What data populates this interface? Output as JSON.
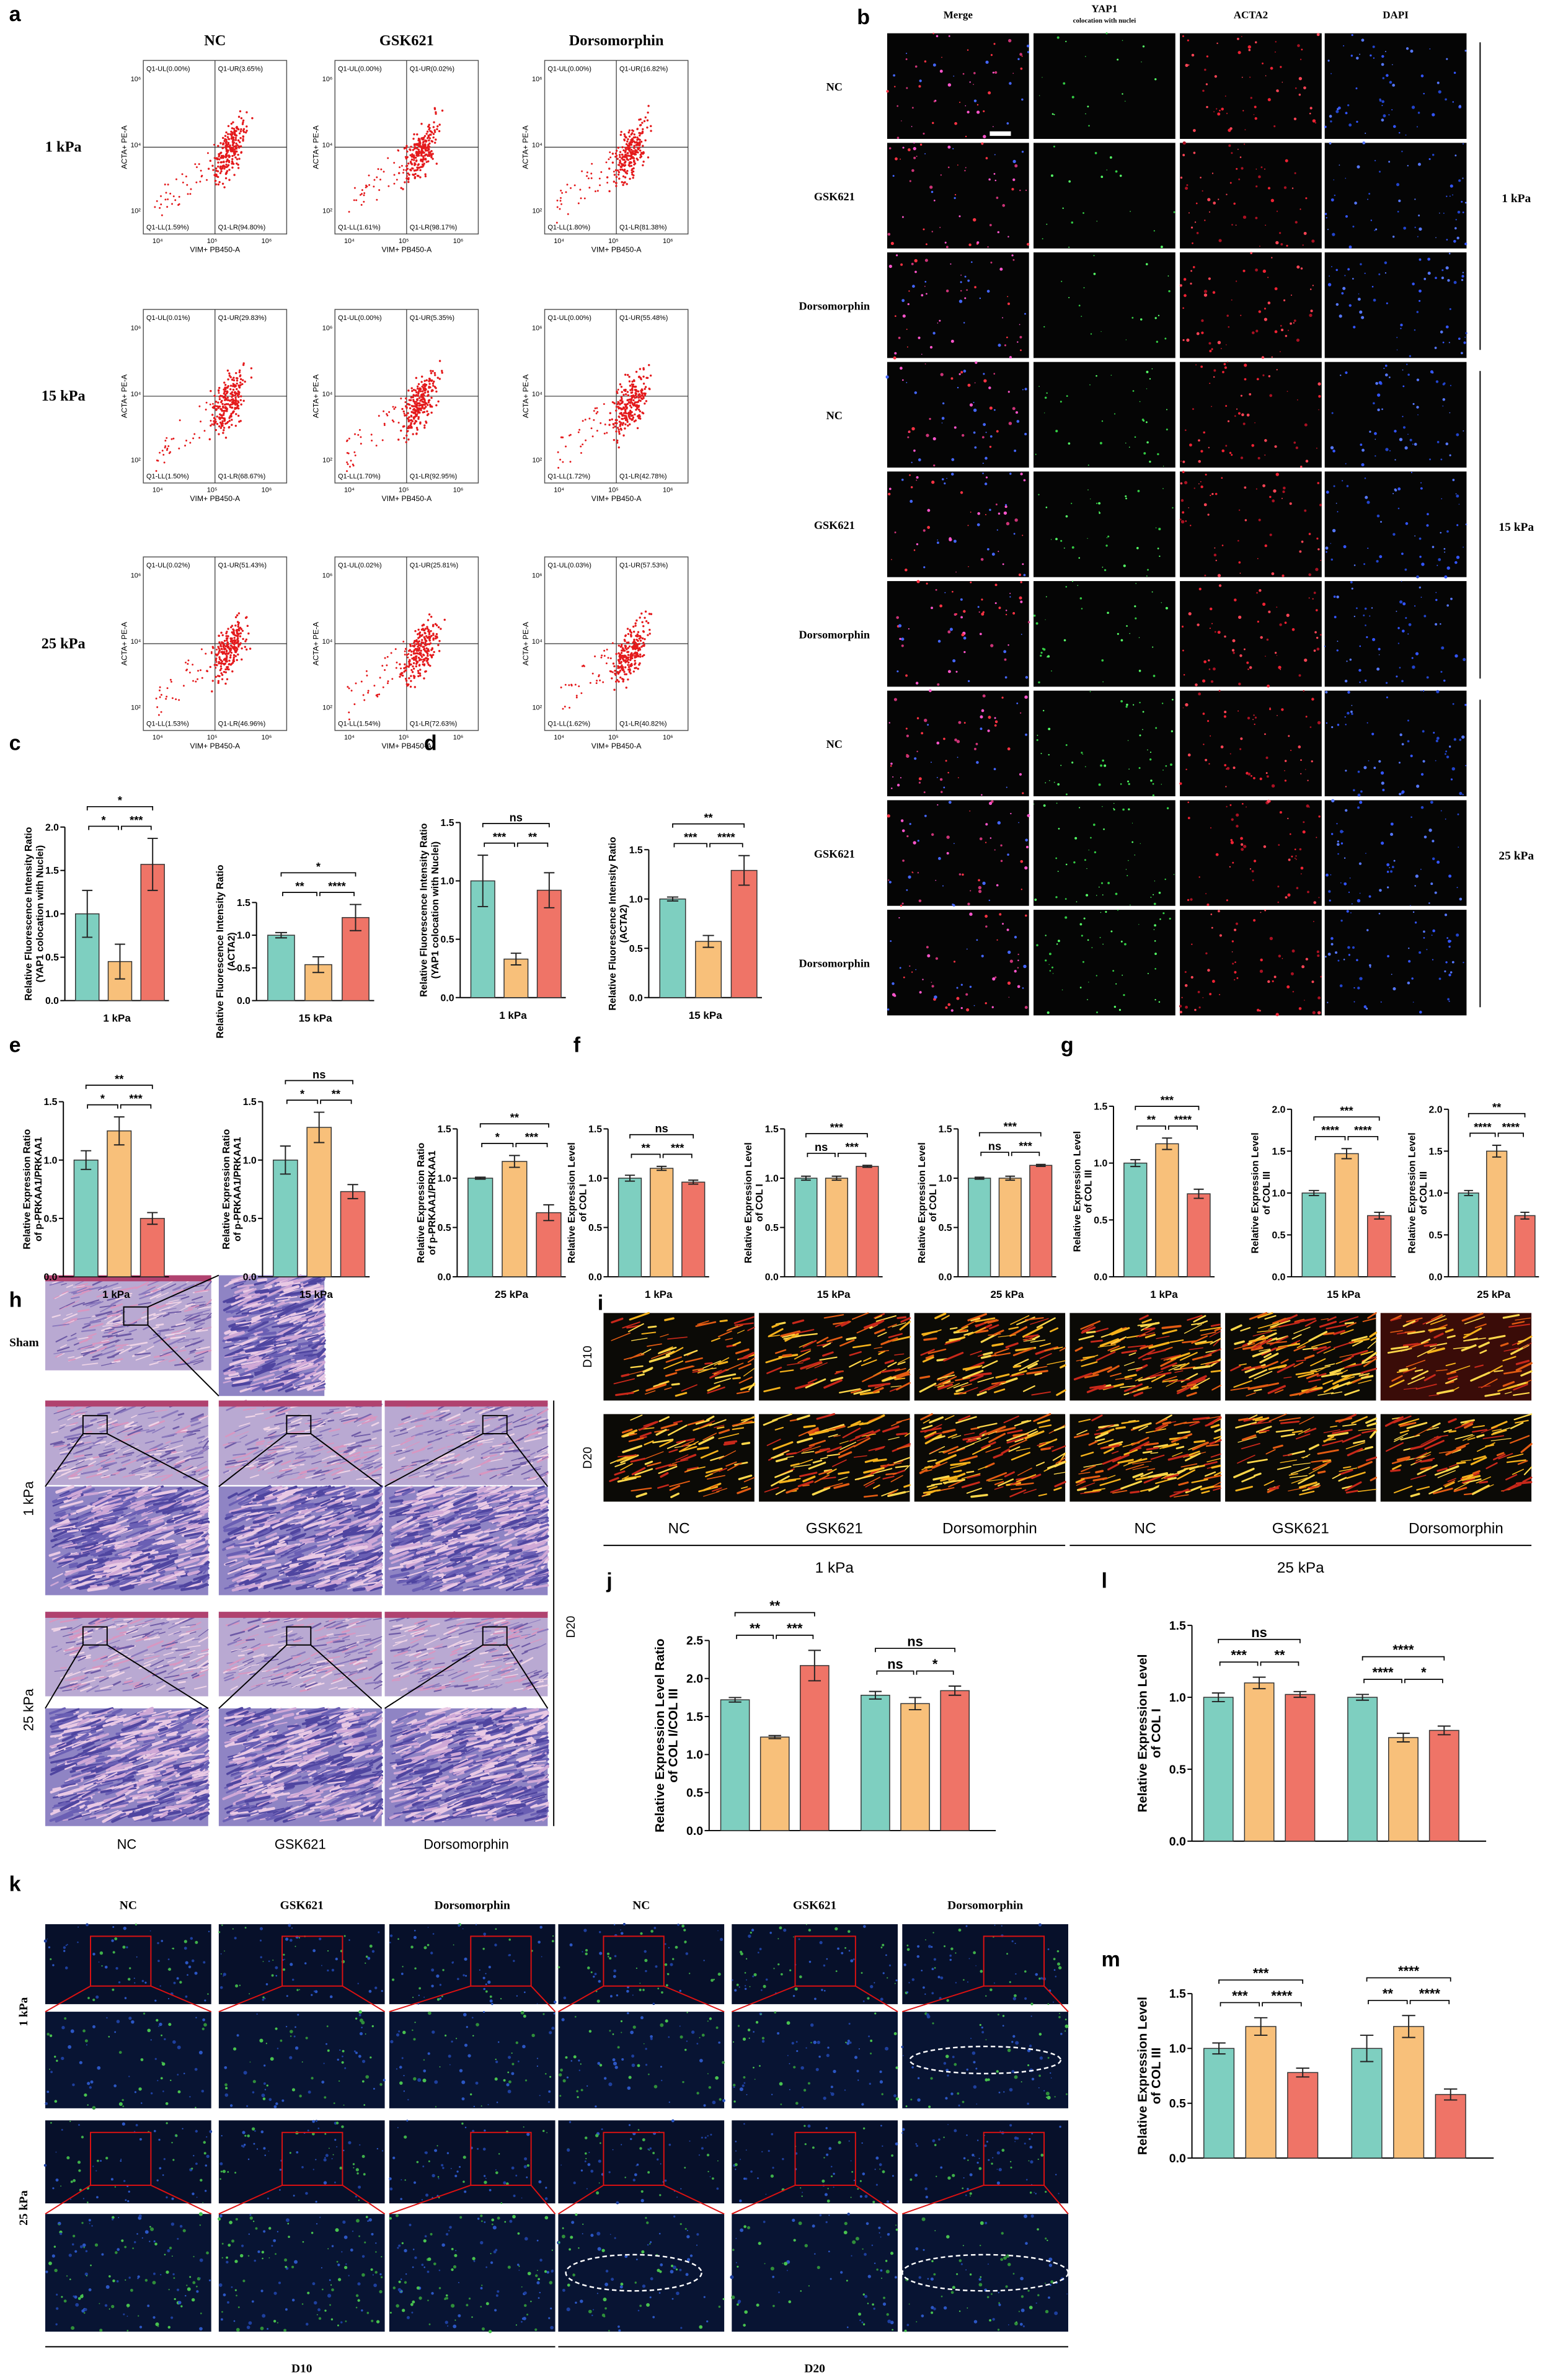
{
  "panel_letters": [
    "a",
    "b",
    "c",
    "d",
    "e",
    "f",
    "g",
    "h",
    "i",
    "j",
    "k",
    "l",
    "m"
  ],
  "flow_cytometry": {
    "columns": [
      "NC",
      "GSK621",
      "Dorsomorphin"
    ],
    "rows": [
      "1 kPa",
      "15 kPa",
      "25 kPa"
    ],
    "x_axis_label": "VIM+ PB450-A",
    "y_axis_label": "ACTA+ PE-A",
    "x_tick_labels": [
      "10⁴",
      "10⁵",
      "10⁶"
    ],
    "y_tick_labels": [
      "10⁶",
      "10⁴",
      "10²"
    ],
    "quadrants": [
      [
        [
          "Q1-UL(0.00%)",
          "Q1-UR(3.65%)",
          "Q1-LL(1.59%)",
          "Q1-LR(94.80%)"
        ],
        [
          "Q1-UL(0.00%)",
          "Q1-UR(0.02%)",
          "Q1-LL(1.61%)",
          "Q1-LR(98.17%)"
        ],
        [
          "Q1-UL(0.00%)",
          "Q1-UR(16.82%)",
          "Q1-LL(1.80%)",
          "Q1-LR(81.38%)"
        ]
      ],
      [
        [
          "Q1-UL(0.01%)",
          "Q1-UR(29.83%)",
          "Q1-LL(1.50%)",
          "Q1-LR(68.67%)"
        ],
        [
          "Q1-UL(0.00%)",
          "Q1-UR(5.35%)",
          "Q1-LL(1.70%)",
          "Q1-LR(92.95%)"
        ],
        [
          "Q1-UL(0.00%)",
          "Q1-UR(55.48%)",
          "Q1-LL(1.72%)",
          "Q1-LR(42.78%)"
        ]
      ],
      [
        [
          "Q1-UL(0.02%)",
          "Q1-UR(51.43%)",
          "Q1-LL(1.53%)",
          "Q1-LR(46.96%)"
        ],
        [
          "Q1-UL(0.02%)",
          "Q1-UR(25.81%)",
          "Q1-LL(1.54%)",
          "Q1-LR(72.63%)"
        ],
        [
          "Q1-UL(0.03%)",
          "Q1-UR(57.53%)",
          "Q1-LL(1.62%)",
          "Q1-LR(40.82%)"
        ]
      ]
    ]
  },
  "immunofluorescence": {
    "columns": [
      "Merge",
      "YAP1",
      "ACTA2",
      "DAPI"
    ],
    "column_note": "colocation with nuclei",
    "row_labels": [
      "NC",
      "GSK621",
      "Dorsomorphin"
    ],
    "groups": [
      "1 kPa",
      "15 kPa",
      "25 kPa"
    ]
  },
  "histology": {
    "sham": "Sham",
    "rows": [
      "1 kPa",
      "25 kPa"
    ],
    "columns": [
      "NC",
      "GSK621",
      "Dorsomorphin"
    ]
  },
  "picrosirius": {
    "rows": [
      "D10",
      "D20"
    ],
    "columns": [
      "NC",
      "GSK621",
      "Dorsomorphin"
    ],
    "groups": [
      "1 kPa",
      "25 kPa"
    ]
  },
  "side_label": "D20",
  "if_staining": {
    "columns": [
      "NC",
      "GSK621",
      "Dorsomorphin"
    ],
    "rows": [
      "1 kPa",
      "25 kPa"
    ],
    "groups": [
      "D10",
      "D20"
    ]
  },
  "chart_data": [
    {
      "type": "bar",
      "ylabel": [
        "Relative Fluorescence Intensity Ratio",
        "(YAP1 colocation with Nuclei)"
      ],
      "xlabel": "1 kPa",
      "ylim": [
        0,
        2
      ],
      "yticks": [
        {
          "value": 0,
          "label": "0.0"
        },
        0.5,
        {
          "value": 1,
          "label": "1.0"
        },
        1.5,
        {
          "value": 2,
          "label": "2.0"
        }
      ],
      "colors": [
        "#7ecfc0",
        "#f8c07a",
        "#ef7467"
      ],
      "groups": [
        {
          "values": [
            1.0,
            0.45,
            1.57
          ],
          "errors": [
            0.27,
            0.2,
            0.3
          ],
          "significance": {
            "outer": "*",
            "left": "*",
            "right": "***"
          }
        }
      ]
    },
    {
      "type": "bar",
      "ylabel": [
        "Relative Fluorescence Intensity Ratio",
        "(ACTA2)"
      ],
      "xlabel": "15 kPa",
      "ylim": [
        0,
        1.5
      ],
      "yticks": [
        {
          "value": 0,
          "label": "0.0"
        },
        0.5,
        {
          "value": 1,
          "label": "1.0"
        },
        1.5
      ],
      "colors": [
        "#7ecfc0",
        "#f8c07a",
        "#ef7467"
      ],
      "groups": [
        {
          "values": [
            1.0,
            0.55,
            1.27
          ],
          "errors": [
            0.04,
            0.12,
            0.2
          ],
          "significance": {
            "outer": "*",
            "left": "**",
            "right": "****"
          }
        }
      ]
    },
    {
      "type": "bar",
      "ylabel": [
        "Relative Fluorescence Intensity Ratio",
        "(YAP1 colocation with Nuclei)"
      ],
      "xlabel": "1 kPa",
      "ylim": [
        0,
        1.5
      ],
      "yticks": [
        {
          "value": 0,
          "label": "0.0"
        },
        0.5,
        {
          "value": 1,
          "label": "1.0"
        },
        1.5
      ],
      "colors": [
        "#7ecfc0",
        "#f8c07a",
        "#ef7467"
      ],
      "groups": [
        {
          "values": [
            1.0,
            0.33,
            0.92
          ],
          "errors": [
            0.22,
            0.05,
            0.15
          ],
          "significance": {
            "outer": "ns",
            "left": "***",
            "right": "**"
          }
        }
      ]
    },
    {
      "type": "bar",
      "ylabel": [
        "Relative Fluorescence Intensity Ratio",
        "(ACTA2)"
      ],
      "xlabel": "15 kPa",
      "ylim": [
        0,
        1.5
      ],
      "yticks": [
        {
          "value": 0,
          "label": "0.0"
        },
        0.5,
        {
          "value": 1,
          "label": "1.0"
        },
        1.5
      ],
      "colors": [
        "#7ecfc0",
        "#f8c07a",
        "#ef7467"
      ],
      "groups": [
        {
          "values": [
            1.0,
            0.57,
            1.29
          ],
          "errors": [
            0.02,
            0.06,
            0.15
          ],
          "significance": {
            "outer": "**",
            "left": "***",
            "right": "****"
          }
        }
      ]
    },
    {
      "type": "bar",
      "ylabel": [
        "Relative Expression Ratio",
        "of p-PRKAA1/PRKAA1"
      ],
      "xlabel": "1 kPa",
      "ylim": [
        0,
        1.5
      ],
      "yticks": [
        {
          "value": 0,
          "label": "0.0"
        },
        0.5,
        {
          "value": 1,
          "label": "1.0"
        },
        1.5
      ],
      "colors": [
        "#7ecfc0",
        "#f8c07a",
        "#ef7467"
      ],
      "groups": [
        {
          "values": [
            1.0,
            1.25,
            0.5
          ],
          "errors": [
            0.08,
            0.12,
            0.05
          ],
          "significance": {
            "outer": "**",
            "left": "*",
            "right": "***"
          }
        }
      ]
    },
    {
      "type": "bar",
      "ylabel": [
        "Relative Expression Ratio",
        "of p-PRKAA1/PRKAA1"
      ],
      "xlabel": "15 kPa",
      "ylim": [
        0,
        1.5
      ],
      "yticks": [
        {
          "value": 0,
          "label": "0.0"
        },
        0.5,
        {
          "value": 1,
          "label": "1.0"
        },
        1.5
      ],
      "colors": [
        "#7ecfc0",
        "#f8c07a",
        "#ef7467"
      ],
      "groups": [
        {
          "values": [
            1.0,
            1.28,
            0.73
          ],
          "errors": [
            0.12,
            0.13,
            0.06
          ],
          "significance": {
            "outer": "ns",
            "left": "*",
            "right": "**"
          }
        }
      ]
    },
    {
      "type": "bar",
      "ylabel": [
        "Relative Expression Ratio",
        "of p-PRKAA1/PRKAA1"
      ],
      "xlabel": "25 kPa",
      "ylim": [
        0,
        1.5
      ],
      "yticks": [
        {
          "value": 0,
          "label": "0.0"
        },
        0.5,
        {
          "value": 1,
          "label": "1.0"
        },
        1.5
      ],
      "colors": [
        "#7ecfc0",
        "#f8c07a",
        "#ef7467"
      ],
      "groups": [
        {
          "values": [
            1.0,
            1.17,
            0.65
          ],
          "errors": [
            0.01,
            0.06,
            0.08
          ],
          "significance": {
            "outer": "**",
            "left": "*",
            "right": "***"
          }
        }
      ]
    },
    {
      "type": "bar",
      "ylabel": [
        "Relative Expression Level",
        "of COL I"
      ],
      "xlabel": "1 kPa",
      "ylim": [
        0,
        1.5
      ],
      "yticks": [
        {
          "value": 0,
          "label": "0.0"
        },
        0.5,
        {
          "value": 1,
          "label": "1.0"
        },
        1.5
      ],
      "colors": [
        "#7ecfc0",
        "#f8c07a",
        "#ef7467"
      ],
      "groups": [
        {
          "values": [
            1.0,
            1.1,
            0.96
          ],
          "errors": [
            0.03,
            0.02,
            0.02
          ],
          "significance": {
            "outer": "ns",
            "left": "**",
            "right": "***"
          }
        }
      ]
    },
    {
      "type": "bar",
      "ylabel": [
        "Relative Expression Level",
        "of COL I"
      ],
      "xlabel": "15 kPa",
      "ylim": [
        0,
        1.5
      ],
      "yticks": [
        {
          "value": 0,
          "label": "0.0"
        },
        0.5,
        {
          "value": 1,
          "label": "1.0"
        },
        1.5
      ],
      "colors": [
        "#7ecfc0",
        "#f8c07a",
        "#ef7467"
      ],
      "groups": [
        {
          "values": [
            1.0,
            1.0,
            1.12
          ],
          "errors": [
            0.02,
            0.02,
            0.01
          ],
          "significance": {
            "outer": "***",
            "left": "ns",
            "right": "***"
          }
        }
      ]
    },
    {
      "type": "bar",
      "ylabel": [
        "Relative Expression Level",
        "of COL I"
      ],
      "xlabel": "25 kPa",
      "ylim": [
        0,
        1.5
      ],
      "yticks": [
        {
          "value": 0,
          "label": "0.0"
        },
        0.5,
        {
          "value": 1,
          "label": "1.0"
        },
        1.5
      ],
      "colors": [
        "#7ecfc0",
        "#f8c07a",
        "#ef7467"
      ],
      "groups": [
        {
          "values": [
            1.0,
            1.0,
            1.13
          ],
          "errors": [
            0.01,
            0.02,
            0.01
          ],
          "significance": {
            "outer": "***",
            "left": "ns",
            "right": "***"
          }
        }
      ]
    },
    {
      "type": "bar",
      "ylabel": [
        "Relative Expression Level",
        "of COL III"
      ],
      "xlabel": "1 kPa",
      "ylim": [
        0,
        1.5
      ],
      "yticks": [
        {
          "value": 0,
          "label": "0.0"
        },
        0.5,
        {
          "value": 1,
          "label": "1.0"
        },
        1.5
      ],
      "colors": [
        "#7ecfc0",
        "#f8c07a",
        "#ef7467"
      ],
      "groups": [
        {
          "values": [
            1.0,
            1.17,
            0.73
          ],
          "errors": [
            0.03,
            0.05,
            0.04
          ],
          "significance": {
            "outer": "***",
            "left": "**",
            "right": "****"
          }
        }
      ]
    },
    {
      "type": "bar",
      "ylabel": [
        "Relative Expression Level",
        "of COL III"
      ],
      "xlabel": "15 kPa",
      "ylim": [
        0,
        2
      ],
      "yticks": [
        {
          "value": 0,
          "label": "0.0"
        },
        0.5,
        {
          "value": 1,
          "label": "1.0"
        },
        1.5,
        {
          "value": 2,
          "label": "2.0"
        }
      ],
      "colors": [
        "#7ecfc0",
        "#f8c07a",
        "#ef7467"
      ],
      "groups": [
        {
          "values": [
            1.0,
            1.47,
            0.73
          ],
          "errors": [
            0.03,
            0.06,
            0.04
          ],
          "significance": {
            "outer": "***",
            "left": "****",
            "right": "****"
          }
        }
      ]
    },
    {
      "type": "bar",
      "ylabel": [
        "Relative Expression Level",
        "of COL III"
      ],
      "xlabel": "25 kPa",
      "ylim": [
        0,
        2
      ],
      "yticks": [
        {
          "value": 0,
          "label": "0.0"
        },
        0.5,
        {
          "value": 1,
          "label": "1.0"
        },
        1.5,
        {
          "value": 2,
          "label": "2.0"
        }
      ],
      "colors": [
        "#7ecfc0",
        "#f8c07a",
        "#ef7467"
      ],
      "groups": [
        {
          "values": [
            1.0,
            1.5,
            0.73
          ],
          "errors": [
            0.03,
            0.07,
            0.04
          ],
          "significance": {
            "outer": "**",
            "left": "****",
            "right": "****"
          }
        }
      ]
    },
    {
      "type": "bar",
      "ylabel": [
        "Relative Expression Level Ratio",
        "of COL I/COL III"
      ],
      "ylim": [
        0,
        2.5
      ],
      "yticks": [
        {
          "value": 0,
          "label": "0.0"
        },
        0.5,
        {
          "value": 1,
          "label": "1.0"
        },
        1.5,
        {
          "value": 2,
          "label": "2.0"
        },
        2.5
      ],
      "colors": [
        "#7ecfc0",
        "#f8c07a",
        "#ef7467"
      ],
      "groups": [
        {
          "values": [
            1.72,
            1.23,
            2.17
          ],
          "errors": [
            0.03,
            0.02,
            0.2
          ],
          "significance": {
            "outer": "**",
            "left": "**",
            "right": "***"
          }
        },
        {
          "values": [
            1.78,
            1.67,
            1.84
          ],
          "errors": [
            0.05,
            0.08,
            0.06
          ],
          "significance": {
            "outer": "ns",
            "left": "ns",
            "right": "*"
          }
        }
      ]
    },
    {
      "type": "bar",
      "ylabel": [
        "Relative Expression Level",
        "of COL I"
      ],
      "ylim": [
        0,
        1.5
      ],
      "yticks": [
        {
          "value": 0,
          "label": "0.0"
        },
        0.5,
        {
          "value": 1,
          "label": "1.0"
        },
        1.5
      ],
      "colors": [
        "#7ecfc0",
        "#f8c07a",
        "#ef7467"
      ],
      "groups": [
        {
          "values": [
            1.0,
            1.1,
            1.02
          ],
          "errors": [
            0.03,
            0.04,
            0.02
          ],
          "significance": {
            "outer": "ns",
            "left": "***",
            "right": "**"
          }
        },
        {
          "values": [
            1.0,
            0.72,
            0.77
          ],
          "errors": [
            0.02,
            0.03,
            0.03
          ],
          "significance": {
            "outer": "****",
            "left": "****",
            "right": "*"
          }
        }
      ]
    },
    {
      "type": "bar",
      "ylabel": [
        "Relative Expression Level",
        "of COL III"
      ],
      "ylim": [
        0,
        1.5
      ],
      "yticks": [
        {
          "value": 0,
          "label": "0.0"
        },
        0.5,
        {
          "value": 1,
          "label": "1.0"
        },
        1.5
      ],
      "colors": [
        "#7ecfc0",
        "#f8c07a",
        "#ef7467"
      ],
      "groups": [
        {
          "values": [
            1.0,
            1.2,
            0.78
          ],
          "errors": [
            0.05,
            0.08,
            0.04
          ],
          "significance": {
            "outer": "***",
            "left": "***",
            "right": "****"
          }
        },
        {
          "values": [
            1.0,
            1.2,
            0.58
          ],
          "errors": [
            0.12,
            0.1,
            0.05
          ],
          "significance": {
            "outer": "****",
            "left": "**",
            "right": "****"
          }
        }
      ]
    }
  ]
}
